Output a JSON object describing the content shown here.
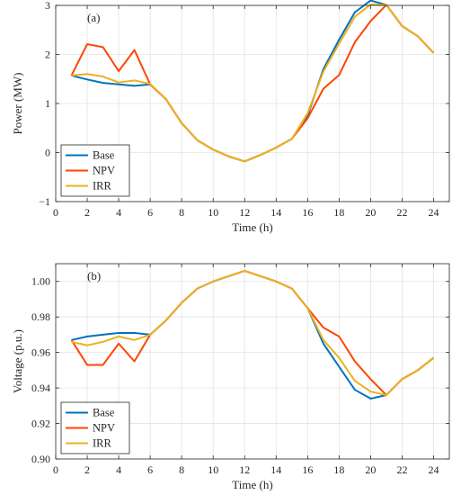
{
  "colors": {
    "Base": "#0072BD",
    "NPV": "#FF4500",
    "IRR": "#EDB120"
  },
  "chart_data": [
    {
      "type": "line",
      "panel_label": "(a)",
      "xlabel": "Time (h)",
      "ylabel": "Power (MW)",
      "xlim": [
        0,
        25
      ],
      "ylim": [
        -1,
        3
      ],
      "xticks": [
        0,
        2,
        4,
        6,
        8,
        10,
        12,
        14,
        16,
        18,
        20,
        22,
        24
      ],
      "yticks": [
        -1,
        0,
        1,
        2,
        3
      ],
      "ytick_labels": [
        "−1",
        "0",
        "1",
        "2",
        "3"
      ],
      "grid": true,
      "legend_position": "bottom-left",
      "series": [
        {
          "name": "Base",
          "x": [
            1,
            2,
            3,
            4,
            5,
            6,
            7,
            8,
            9,
            10,
            11,
            12,
            13,
            14,
            15,
            16,
            17,
            18,
            19,
            20,
            21,
            22,
            23,
            24
          ],
          "y": [
            1.57,
            1.49,
            1.42,
            1.39,
            1.36,
            1.39,
            1.09,
            0.6,
            0.25,
            0.06,
            -0.08,
            -0.18,
            -0.05,
            0.1,
            0.28,
            0.75,
            1.7,
            2.3,
            2.86,
            3.1,
            3.01,
            2.58,
            2.37,
            2.03
          ]
        },
        {
          "name": "NPV",
          "x": [
            1,
            2,
            3,
            4,
            5,
            6,
            7,
            8,
            9,
            10,
            11,
            12,
            13,
            14,
            15,
            16,
            17,
            18,
            19,
            20,
            21,
            22,
            23,
            24
          ],
          "y": [
            1.57,
            2.21,
            2.15,
            1.66,
            2.09,
            1.39,
            1.09,
            0.6,
            0.25,
            0.06,
            -0.08,
            -0.18,
            -0.05,
            0.1,
            0.28,
            0.7,
            1.3,
            1.58,
            2.25,
            2.68,
            3.01,
            2.58,
            2.37,
            2.03
          ]
        },
        {
          "name": "IRR",
          "x": [
            1,
            2,
            3,
            4,
            5,
            6,
            7,
            8,
            9,
            10,
            11,
            12,
            13,
            14,
            15,
            16,
            17,
            18,
            19,
            20,
            21,
            22,
            23,
            24
          ],
          "y": [
            1.57,
            1.6,
            1.55,
            1.43,
            1.47,
            1.4,
            1.09,
            0.6,
            0.25,
            0.06,
            -0.08,
            -0.18,
            -0.05,
            0.1,
            0.28,
            0.8,
            1.65,
            2.22,
            2.77,
            3.02,
            3.01,
            2.58,
            2.37,
            2.03
          ]
        }
      ]
    },
    {
      "type": "line",
      "panel_label": "(b)",
      "xlabel": "Time (h)",
      "ylabel": "Voltage (p.u.)",
      "xlim": [
        0,
        25
      ],
      "ylim": [
        0.9,
        1.01
      ],
      "xticks": [
        0,
        2,
        4,
        6,
        8,
        10,
        12,
        14,
        16,
        18,
        20,
        22,
        24
      ],
      "yticks": [
        0.9,
        0.92,
        0.94,
        0.96,
        0.98,
        1.0
      ],
      "ytick_labels": [
        "0.90",
        "0.92",
        "0.94",
        "0.96",
        "0.98",
        "1.00"
      ],
      "grid": true,
      "legend_position": "bottom-left",
      "series": [
        {
          "name": "Base",
          "x": [
            1,
            2,
            3,
            4,
            5,
            6,
            7,
            8,
            9,
            10,
            11,
            12,
            13,
            14,
            15,
            16,
            17,
            18,
            19,
            20,
            21,
            22,
            23,
            24
          ],
          "y": [
            0.967,
            0.969,
            0.97,
            0.971,
            0.971,
            0.97,
            0.978,
            0.988,
            0.996,
            1.0,
            1.003,
            1.006,
            1.003,
            1.0,
            0.996,
            0.985,
            0.965,
            0.952,
            0.939,
            0.934,
            0.936,
            0.945,
            0.95,
            0.957
          ]
        },
        {
          "name": "NPV",
          "x": [
            1,
            2,
            3,
            4,
            5,
            6,
            7,
            8,
            9,
            10,
            11,
            12,
            13,
            14,
            15,
            16,
            17,
            18,
            19,
            20,
            21,
            22,
            23,
            24
          ],
          "y": [
            0.967,
            0.953,
            0.953,
            0.965,
            0.955,
            0.97,
            0.978,
            0.988,
            0.996,
            1.0,
            1.003,
            1.006,
            1.003,
            1.0,
            0.996,
            0.985,
            0.974,
            0.969,
            0.955,
            0.945,
            0.936,
            0.945,
            0.95,
            0.957
          ]
        },
        {
          "name": "IRR",
          "x": [
            1,
            2,
            3,
            4,
            5,
            6,
            7,
            8,
            9,
            10,
            11,
            12,
            13,
            14,
            15,
            16,
            17,
            18,
            19,
            20,
            21,
            22,
            23,
            24
          ],
          "y": [
            0.966,
            0.964,
            0.966,
            0.969,
            0.967,
            0.97,
            0.978,
            0.988,
            0.996,
            1.0,
            1.003,
            1.006,
            1.003,
            1.0,
            0.996,
            0.985,
            0.967,
            0.957,
            0.944,
            0.938,
            0.936,
            0.945,
            0.95,
            0.957
          ]
        }
      ]
    }
  ]
}
